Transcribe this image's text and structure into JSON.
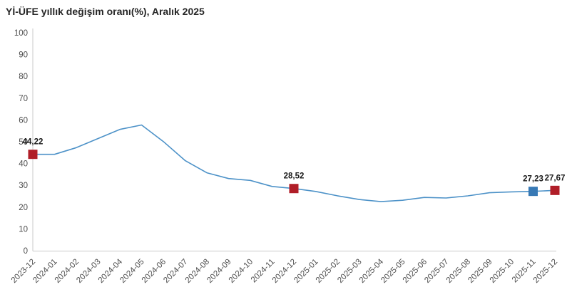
{
  "header": {
    "title": "Yİ-ÜFE yıllık değişim oranı(%), Aralık 2025"
  },
  "chart_data": {
    "type": "line",
    "title": "Yİ-ÜFE yıllık değişim oranı(%), Aralık 2025",
    "xlabel": "",
    "ylabel": "",
    "ylim": [
      0,
      100
    ],
    "y_ticks": [
      0,
      10,
      20,
      30,
      40,
      50,
      60,
      70,
      80,
      90,
      100
    ],
    "grid": false,
    "legend": false,
    "categories": [
      "2023-12",
      "2024-01",
      "2024-02",
      "2024-03",
      "2024-04",
      "2024-05",
      "2024-06",
      "2024-07",
      "2024-08",
      "2024-09",
      "2024-10",
      "2024-11",
      "2024-12",
      "2025-01",
      "2025-02",
      "2025-03",
      "2025-04",
      "2025-05",
      "2025-06",
      "2025-07",
      "2025-08",
      "2025-09",
      "2025-10",
      "2025-11",
      "2025-12"
    ],
    "values": [
      44.22,
      44.2,
      47.29,
      51.47,
      55.66,
      57.68,
      50.09,
      41.37,
      35.75,
      33.09,
      32.24,
      29.47,
      28.52,
      27.2,
      25.21,
      23.5,
      22.5,
      23.13,
      24.45,
      24.19,
      25.16,
      26.59,
      27.0,
      27.23,
      27.67
    ],
    "annotated_points": [
      {
        "category": "2023-12",
        "index": 0,
        "value": 44.22,
        "label": "44,22",
        "marker_color": "#b01e28"
      },
      {
        "category": "2024-12",
        "index": 12,
        "value": 28.52,
        "label": "28,52",
        "marker_color": "#b01e28"
      },
      {
        "category": "2025-11",
        "index": 23,
        "value": 27.23,
        "label": "27,23",
        "marker_color": "#3779b5"
      },
      {
        "category": "2025-12",
        "index": 24,
        "value": 27.67,
        "label": "27,67",
        "marker_color": "#b01e28"
      }
    ],
    "colors": {
      "line": "#4d92c8",
      "red_marker": "#b01e28",
      "blue_marker": "#3779b5",
      "axis_line": "#c9c9c9",
      "tick_label": "#4d4d4d",
      "data_label": "#1a1a1a",
      "title": "#262626"
    }
  }
}
